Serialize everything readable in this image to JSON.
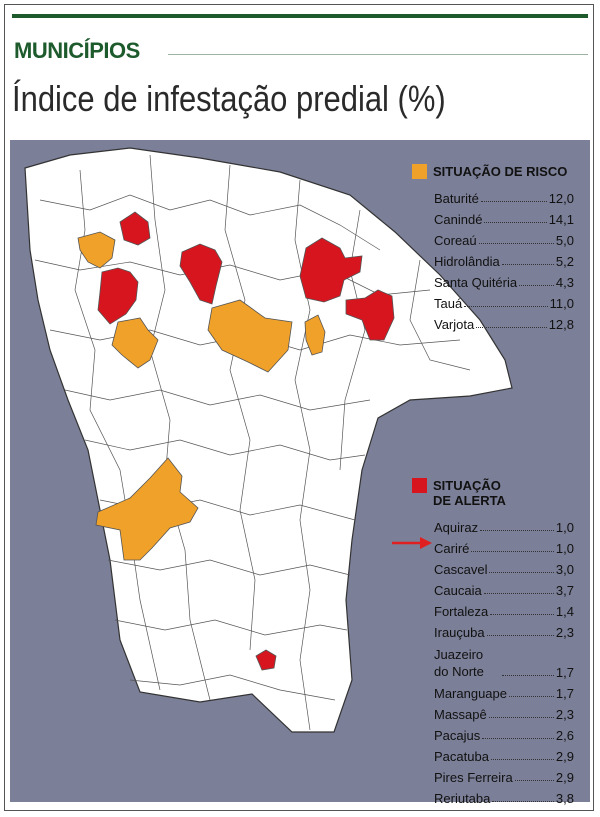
{
  "header": {
    "section": "MUNICÍPIOS",
    "title": "Índice de infestação predial (%)"
  },
  "legend": {
    "risk": {
      "label": "SITUAÇÃO DE RISCO",
      "items": [
        {
          "name": "Baturité",
          "value": "12,0"
        },
        {
          "name": "Canindé",
          "value": "14,1"
        },
        {
          "name": "Coreaú",
          "value": "5,0"
        },
        {
          "name": "Hidrolândia",
          "value": "5,2"
        },
        {
          "name": "Santa Quitéria",
          "value": "4,3"
        },
        {
          "name": "Tauá",
          "value": "11,0"
        },
        {
          "name": "Varjota",
          "value": "12,8"
        }
      ]
    },
    "alert": {
      "label": "SITUAÇÃO DE ALERTA",
      "items": [
        {
          "name": "Aquiraz",
          "value": "1,0"
        },
        {
          "name": "Cariré",
          "value": "1,0"
        },
        {
          "name": "Cascavel",
          "value": "3,0"
        },
        {
          "name": "Caucaia",
          "value": "3,7"
        },
        {
          "name": "Fortaleza",
          "value": "1,4"
        },
        {
          "name": "Irauçuba",
          "value": "2,3"
        },
        {
          "name": "Juazeiro do Norte",
          "value": "1,7"
        },
        {
          "name": "Maranguape",
          "value": "1,7"
        },
        {
          "name": "Massapê",
          "value": "2,3"
        },
        {
          "name": "Pacajus",
          "value": "2,6"
        },
        {
          "name": "Pacatuba",
          "value": "2,9"
        },
        {
          "name": "Pires Ferreira",
          "value": "2,9"
        },
        {
          "name": "Reriutaba",
          "value": "3,8"
        }
      ]
    }
  }
}
